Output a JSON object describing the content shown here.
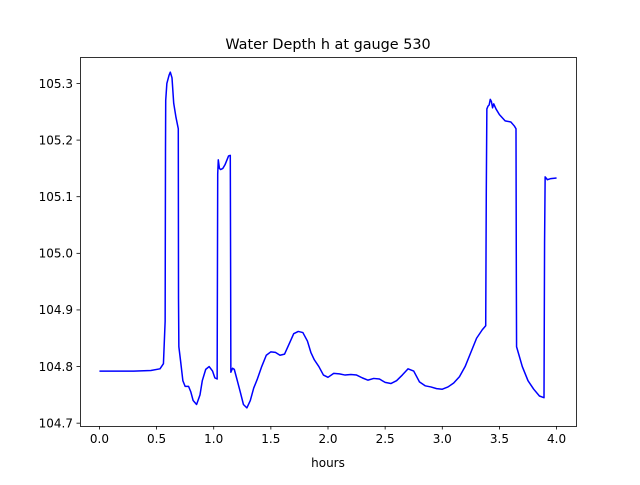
{
  "chart_data": {
    "type": "line",
    "title": "Water Depth h at gauge 530",
    "xlabel": "hours",
    "ylabel": "",
    "xlim": [
      -0.17,
      4.17
    ],
    "ylim": [
      104.695,
      105.345
    ],
    "xticks": [
      0.0,
      0.5,
      1.0,
      1.5,
      2.0,
      2.5,
      3.0,
      3.5,
      4.0
    ],
    "xtick_labels": [
      "0.0",
      "0.5",
      "1.0",
      "1.5",
      "2.0",
      "2.5",
      "3.0",
      "3.5",
      "4.0"
    ],
    "yticks": [
      104.7,
      104.8,
      104.9,
      105.0,
      105.1,
      105.2,
      105.3
    ],
    "ytick_labels": [
      "104.7",
      "104.8",
      "104.9",
      "105.0",
      "105.1",
      "105.2",
      "105.3"
    ],
    "grid": false,
    "series": [
      {
        "color": "#0000ff",
        "x": [
          0.0,
          0.3,
          0.45,
          0.53,
          0.56,
          0.575,
          0.578,
          0.58,
          0.59,
          0.61,
          0.62,
          0.635,
          0.65,
          0.67,
          0.69,
          0.692,
          0.695,
          0.71,
          0.73,
          0.75,
          0.78,
          0.8,
          0.82,
          0.85,
          0.88,
          0.9,
          0.93,
          0.96,
          0.99,
          1.01,
          1.03,
          1.035,
          1.04,
          1.05,
          1.06,
          1.08,
          1.1,
          1.13,
          1.145,
          1.148,
          1.15,
          1.165,
          1.18,
          1.2,
          1.23,
          1.26,
          1.29,
          1.32,
          1.35,
          1.38,
          1.42,
          1.46,
          1.5,
          1.54,
          1.58,
          1.62,
          1.66,
          1.7,
          1.74,
          1.78,
          1.82,
          1.85,
          1.88,
          1.92,
          1.96,
          2.0,
          2.05,
          2.1,
          2.15,
          2.2,
          2.25,
          2.3,
          2.35,
          2.4,
          2.45,
          2.5,
          2.55,
          2.6,
          2.65,
          2.7,
          2.75,
          2.8,
          2.85,
          2.9,
          2.95,
          3.0,
          3.05,
          3.1,
          3.15,
          3.2,
          3.25,
          3.3,
          3.35,
          3.38,
          3.385,
          3.39,
          3.4,
          3.41,
          3.42,
          3.43,
          3.44,
          3.45,
          3.47,
          3.5,
          3.55,
          3.6,
          3.63,
          3.645,
          3.648,
          3.65,
          3.7,
          3.75,
          3.8,
          3.85,
          3.89,
          3.895,
          3.9,
          3.92,
          3.95,
          4.0
        ],
        "y": [
          104.792,
          104.792,
          104.793,
          104.796,
          104.805,
          104.88,
          105.18,
          105.27,
          105.3,
          105.315,
          105.32,
          105.31,
          105.265,
          105.24,
          105.22,
          104.92,
          104.835,
          104.81,
          104.775,
          104.765,
          104.765,
          104.755,
          104.74,
          104.733,
          104.75,
          104.775,
          104.795,
          104.8,
          104.792,
          104.78,
          104.778,
          105.14,
          105.165,
          105.15,
          105.148,
          105.15,
          105.157,
          105.172,
          105.173,
          104.96,
          104.79,
          104.797,
          104.795,
          104.78,
          104.757,
          104.733,
          104.727,
          104.74,
          104.762,
          104.777,
          104.8,
          104.82,
          104.826,
          104.825,
          104.82,
          104.822,
          104.84,
          104.858,
          104.862,
          104.86,
          104.845,
          104.825,
          104.812,
          104.8,
          104.785,
          104.781,
          104.788,
          104.787,
          104.785,
          104.786,
          104.785,
          104.78,
          104.776,
          104.779,
          104.778,
          104.772,
          104.77,
          104.775,
          104.785,
          104.796,
          104.792,
          104.773,
          104.766,
          104.764,
          104.761,
          104.76,
          104.764,
          104.771,
          104.782,
          104.8,
          104.825,
          104.85,
          104.865,
          104.872,
          105.11,
          105.255,
          105.26,
          105.262,
          105.272,
          105.268,
          105.257,
          105.264,
          105.255,
          105.245,
          105.234,
          105.232,
          105.225,
          105.22,
          104.95,
          104.835,
          104.8,
          104.775,
          104.76,
          104.748,
          104.745,
          105.02,
          105.135,
          105.13,
          105.132,
          105.133
        ]
      }
    ]
  }
}
